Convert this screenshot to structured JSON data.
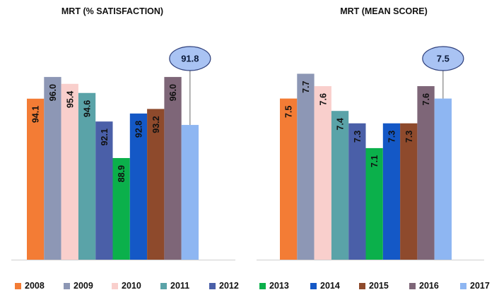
{
  "colors": {
    "2008": "#f37c35",
    "2009": "#8d97b5",
    "2010": "#f9cfcc",
    "2011": "#5aa3a8",
    "2012": "#4a5fa8",
    "2013": "#0bb04b",
    "2014": "#1458c6",
    "2015": "#8e4a2c",
    "2016": "#7e6678",
    "2017": "#8eb6f2",
    "callout_fill": "#a9c3f3",
    "callout_stroke": "#2d3e7a"
  },
  "chart_data": [
    {
      "type": "bar",
      "title": "MRT (% SATISFACTION)",
      "categories": [
        "2008",
        "2009",
        "2010",
        "2011",
        "2012",
        "2013",
        "2014",
        "2015",
        "2016",
        "2017"
      ],
      "values": [
        94.1,
        96.0,
        95.4,
        94.6,
        92.1,
        88.9,
        92.8,
        93.2,
        96.0,
        91.8
      ],
      "labels": [
        "94.1",
        "96.0",
        "95.4",
        "94.6",
        "92.1",
        "88.9",
        "92.8",
        "93.2",
        "96.0",
        "91.8"
      ],
      "ylim": [
        80.0,
        96.5
      ],
      "grid": false,
      "legend": "bottom",
      "highlight": "2017"
    },
    {
      "type": "bar",
      "title": "MRT (MEAN SCORE)",
      "categories": [
        "2008",
        "2009",
        "2010",
        "2011",
        "2012",
        "2013",
        "2014",
        "2015",
        "2016",
        "2017"
      ],
      "values": [
        7.5,
        7.7,
        7.6,
        7.4,
        7.3,
        7.1,
        7.3,
        7.3,
        7.6,
        7.5
      ],
      "labels": [
        "7.5",
        "7.7",
        "7.6",
        "7.4",
        "7.3",
        "7.1",
        "7.3",
        "7.3",
        "7.6",
        "7.5"
      ],
      "ylim": [
        6.2,
        7.72
      ],
      "grid": false,
      "legend": "bottom",
      "highlight": "2017"
    }
  ],
  "legend": [
    "2008",
    "2009",
    "2010",
    "2011",
    "2012",
    "2013",
    "2014",
    "2015",
    "2016",
    "2017"
  ]
}
